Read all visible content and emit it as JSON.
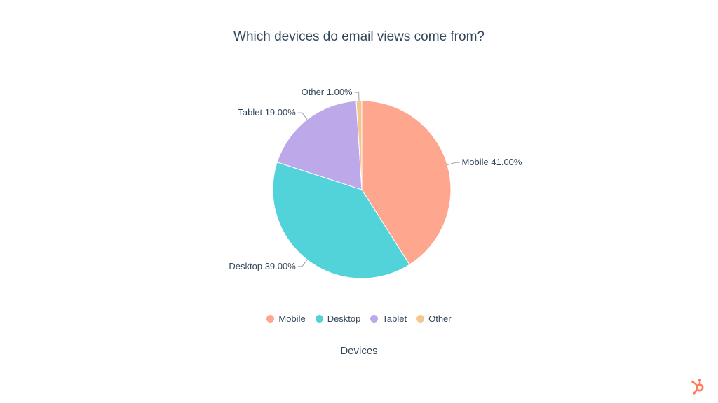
{
  "chart_data": {
    "type": "pie",
    "title": "Which devices do email views come from?",
    "xlabel": "Devices",
    "legend_position": "bottom",
    "slices": [
      {
        "label": "Mobile",
        "value": 41.0,
        "display": "Mobile 41.00%",
        "color": "#ffa78e"
      },
      {
        "label": "Desktop",
        "value": 39.0,
        "display": "Desktop 39.00%",
        "color": "#51d3d9"
      },
      {
        "label": "Tablet",
        "value": 19.0,
        "display": "Tablet 19.00%",
        "color": "#bda9ea"
      },
      {
        "label": "Other",
        "value": 1.0,
        "display": "Other 1.00%",
        "color": "#f5c78e"
      }
    ]
  },
  "logo": {
    "name": "sprocket-icon",
    "color": "#ff7a59"
  }
}
